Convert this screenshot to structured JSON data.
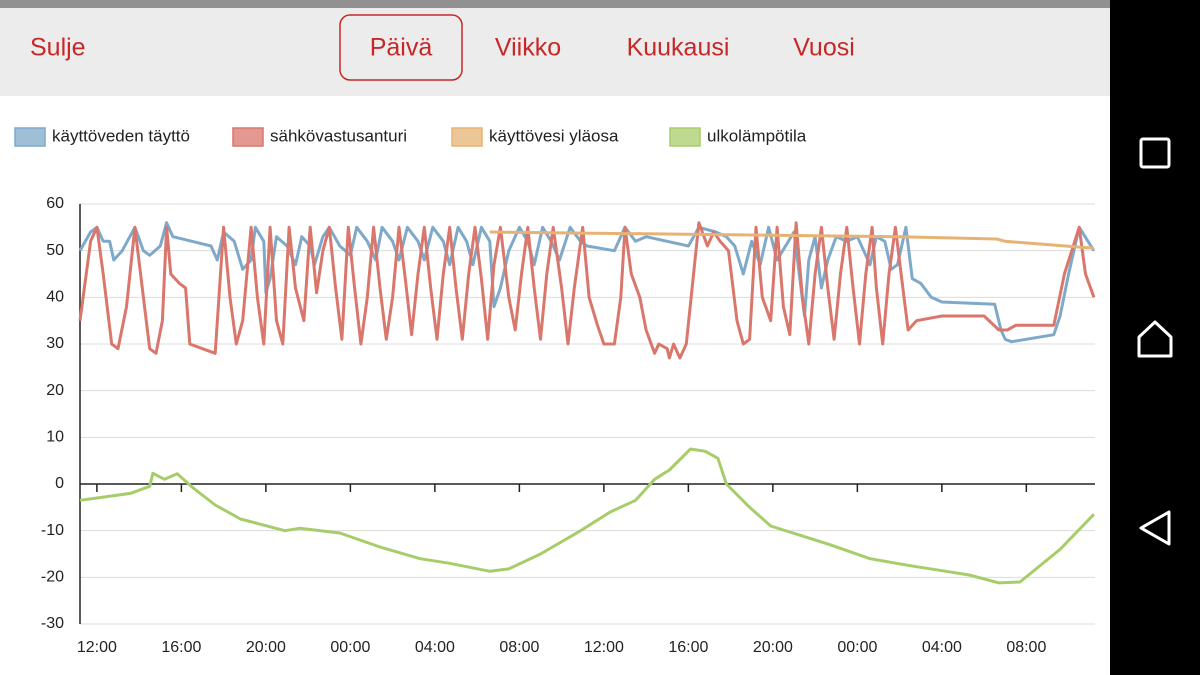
{
  "header": {
    "close": "Sulje",
    "tabs": [
      "Päivä",
      "Viikko",
      "Kuukausi",
      "Vuosi"
    ],
    "active_tab": 0
  },
  "chart_data": {
    "type": "line",
    "legend": "top-left",
    "grid": true,
    "xlim": [
      11.2,
      59.25
    ],
    "ylim": [
      -30,
      60
    ],
    "yticks": [
      -30,
      -20,
      -10,
      0,
      10,
      20,
      30,
      40,
      50,
      60
    ],
    "xticks": [
      {
        "value": 12,
        "label": "12:00"
      },
      {
        "value": 16,
        "label": "16:00"
      },
      {
        "value": 20,
        "label": "20:00"
      },
      {
        "value": 24,
        "label": "00:00"
      },
      {
        "value": 28,
        "label": "04:00"
      },
      {
        "value": 32,
        "label": "08:00"
      },
      {
        "value": 36,
        "label": "12:00"
      },
      {
        "value": 40,
        "label": "16:00"
      },
      {
        "value": 44,
        "label": "20:00"
      },
      {
        "value": 48,
        "label": "00:00"
      },
      {
        "value": 52,
        "label": "04:00"
      },
      {
        "value": 56,
        "label": "08:00"
      }
    ],
    "series": [
      {
        "name": "käyttöveden täyttö",
        "color": "#7fa9c9",
        "x": [
          11.2,
          11.7,
          12.0,
          12.3,
          12.6,
          12.8,
          13.2,
          13.8,
          14.2,
          14.5,
          15.0,
          15.3,
          15.6,
          16.5,
          17.4,
          17.7,
          18.0,
          18.5,
          18.9,
          19.3,
          19.5,
          19.9,
          20.0,
          20.2,
          20.5,
          21.0,
          21.4,
          21.7,
          22.1,
          22.3,
          22.7,
          23.0,
          23.5,
          24.0,
          24.3,
          24.8,
          25.2,
          25.5,
          26.0,
          26.3,
          26.7,
          27.2,
          27.5,
          27.9,
          28.4,
          28.7,
          29.1,
          29.5,
          29.8,
          30.2,
          30.6,
          30.8,
          31.1,
          31.5,
          32.0,
          32.4,
          32.7,
          33.1,
          33.5,
          33.9,
          34.4,
          34.9,
          35.2,
          36.5,
          37.0,
          37.5,
          38.0,
          40.0,
          40.5,
          41.3,
          41.8,
          42.2,
          42.6,
          43.0,
          43.4,
          43.8,
          44.2,
          45.0,
          45.5,
          45.7,
          46.0,
          46.3,
          46.6,
          47.0,
          47.5,
          48.0,
          48.6,
          48.9,
          49.3,
          49.6,
          49.9,
          50.3,
          50.6,
          51.0,
          51.5,
          52.0,
          54.5,
          54.8,
          55.0,
          55.3,
          57.3,
          57.6,
          58.0,
          58.5,
          59.2
        ],
        "values": [
          50,
          54,
          55,
          52,
          52,
          48,
          50,
          55,
          50,
          49,
          51,
          56,
          53,
          52,
          51,
          48,
          54,
          52,
          46,
          48,
          55,
          52,
          41,
          44,
          53,
          51,
          47,
          53,
          51,
          47,
          53,
          55,
          51,
          49,
          55,
          52,
          48,
          55,
          52,
          48,
          55,
          52,
          48,
          55,
          52,
          47,
          55,
          52,
          47,
          55,
          52,
          38,
          42,
          50,
          55,
          52,
          47,
          55,
          52,
          48,
          55,
          52,
          51,
          50,
          55,
          52,
          53,
          51,
          55,
          54,
          53,
          51,
          45,
          52,
          47,
          55,
          48,
          54,
          36,
          48,
          53,
          42,
          48,
          53,
          52,
          53,
          47,
          53,
          52,
          46,
          47,
          55,
          44,
          43,
          40,
          39,
          38.5,
          33,
          31,
          30.5,
          32,
          36,
          45,
          55,
          50
        ]
      },
      {
        "name": "sähkövastusanturi",
        "color": "#d9776c",
        "x": [
          11.2,
          11.7,
          12.0,
          12.3,
          12.7,
          13.0,
          13.4,
          13.8,
          14.2,
          14.5,
          14.8,
          15.1,
          15.3,
          15.5,
          15.9,
          16.2,
          16.4,
          17.0,
          17.6,
          18.0,
          18.3,
          18.6,
          18.9,
          19.3,
          19.6,
          19.9,
          20.2,
          20.5,
          20.8,
          21.1,
          21.4,
          21.8,
          22.1,
          22.4,
          22.7,
          23.0,
          23.3,
          23.6,
          23.9,
          24.2,
          24.5,
          24.8,
          25.1,
          25.4,
          25.7,
          26.0,
          26.3,
          26.6,
          26.9,
          27.2,
          27.5,
          27.8,
          28.1,
          28.4,
          28.7,
          29.0,
          29.3,
          29.6,
          29.9,
          30.2,
          30.5,
          30.8,
          31.1,
          31.5,
          31.8,
          32.1,
          32.4,
          32.7,
          33.0,
          33.3,
          33.6,
          34.0,
          34.3,
          34.6,
          35.0,
          35.3,
          35.7,
          36.0,
          36.5,
          36.8,
          37.0,
          37.3,
          37.7,
          38.0,
          38.4,
          38.6,
          39.0,
          39.1,
          39.3,
          39.6,
          39.9,
          40.5,
          40.9,
          41.2,
          41.5,
          41.9,
          42.3,
          42.6,
          42.9,
          43.2,
          43.5,
          43.9,
          44.2,
          44.5,
          44.8,
          45.1,
          45.4,
          45.7,
          46.0,
          46.3,
          46.6,
          46.9,
          47.2,
          47.5,
          47.8,
          48.1,
          48.4,
          48.7,
          48.9,
          49.2,
          49.5,
          49.8,
          50.1,
          50.4,
          50.8,
          52.0,
          54.0,
          54.7,
          55.1,
          55.5,
          57.3,
          57.8,
          58.5,
          58.8,
          59.2
        ],
        "values": [
          35,
          52,
          55,
          45,
          30,
          29,
          38,
          55,
          40,
          29,
          28,
          35,
          55,
          45,
          43,
          42,
          30,
          29,
          28,
          55,
          40,
          30,
          35,
          55,
          40,
          30,
          55,
          35,
          30,
          55,
          42,
          35,
          55,
          41,
          50,
          55,
          42,
          31,
          55,
          42,
          30,
          40,
          55,
          42,
          31,
          40,
          55,
          44,
          32,
          45,
          55,
          42,
          31,
          45,
          55,
          42,
          31,
          45,
          55,
          44,
          31,
          47,
          55,
          40,
          33,
          45,
          55,
          42,
          31,
          45,
          55,
          42,
          30,
          42,
          55,
          40,
          34,
          30,
          30,
          40,
          55,
          45,
          40,
          33,
          28,
          30,
          29,
          27,
          30,
          27,
          30,
          56,
          51,
          54,
          52,
          50,
          35,
          30,
          31,
          55,
          40,
          35,
          55,
          38,
          32,
          56,
          40,
          30,
          45,
          55,
          42,
          31,
          45,
          55,
          42,
          30,
          45,
          55,
          42,
          30,
          45,
          55,
          44,
          33,
          35,
          36,
          36,
          33,
          33,
          34,
          34,
          45,
          55,
          45,
          40
        ]
      },
      {
        "name": "käyttövesi yläosa",
        "color": "#e6b374",
        "x": [
          30.6,
          40.0,
          50.0,
          54.6,
          55.0,
          59.2
        ],
        "values": [
          54,
          53.5,
          53,
          52.5,
          52,
          50.5
        ]
      },
      {
        "name": "ulkolämpötila",
        "color": "#a7cd6a",
        "x": [
          11.2,
          12.0,
          13.6,
          14.5,
          14.65,
          15.2,
          15.8,
          16.6,
          17.6,
          18.8,
          20.9,
          21.6,
          23.5,
          25.4,
          27.3,
          28.7,
          30.6,
          31.5,
          33.0,
          34.9,
          36.3,
          37.5,
          38.4,
          39.1,
          40.1,
          40.8,
          41.4,
          41.8,
          42.9,
          43.9,
          45.3,
          46.7,
          48.6,
          50.5,
          51.9,
          53.3,
          54.7,
          55.7,
          57.6,
          59.2
        ],
        "values": [
          -3.5,
          -3,
          -2,
          -0.5,
          2.3,
          1,
          2.2,
          -1,
          -4.5,
          -7.5,
          -10,
          -9.5,
          -10.5,
          -13.5,
          -16,
          -17,
          -18.7,
          -18.2,
          -15,
          -10,
          -6,
          -3.5,
          1,
          3,
          7.5,
          7,
          5.5,
          0,
          -5,
          -9,
          -11,
          -13,
          -16,
          -17.5,
          -18.5,
          -19.5,
          -21.2,
          -21,
          -14,
          -6.5
        ]
      }
    ]
  }
}
